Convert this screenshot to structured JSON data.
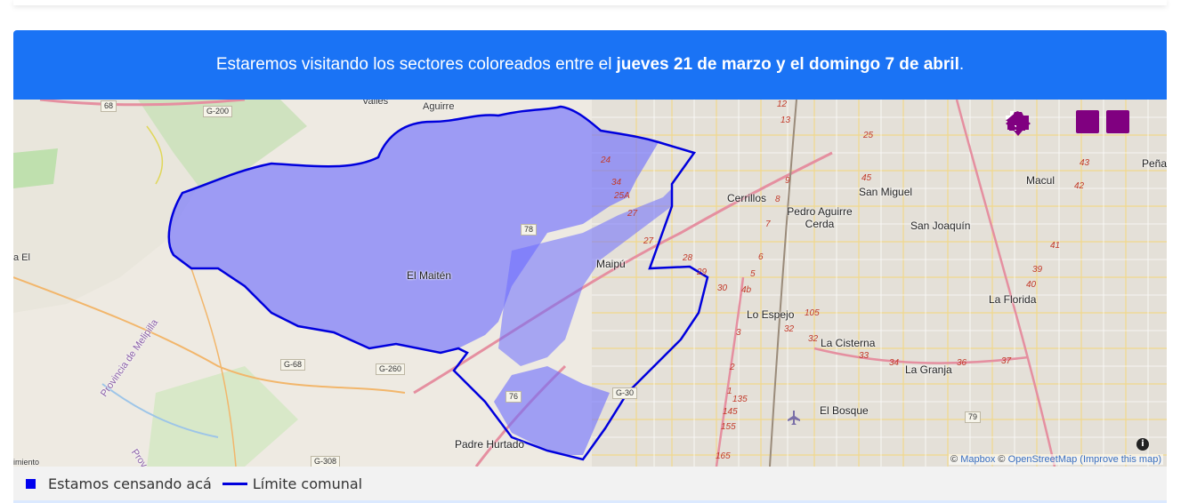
{
  "banner": {
    "text_before": "Estaremos visitando los sectores coloreados entre el ",
    "text_bold": "jueves 21 de marzo y el domingo 7 de abril",
    "text_after": "."
  },
  "map": {
    "places": {
      "aguirre": "Aguirre",
      "valles": "Valles",
      "el_maiten": "El Maitén",
      "maipu": "Maipú",
      "cerrillos": "Cerrillos",
      "pedro_aguirre_cerda": "Pedro Aguirre Cerda",
      "san_miguel": "San Miguel",
      "san_joaquin": "San Joaquín",
      "macul": "Macul",
      "penal": "Peñal",
      "la_florida": "La Florida",
      "lo_espejo": "Lo Espejo",
      "la_cisterna": "La Cisterna",
      "la_granja": "La Granja",
      "el_bosque": "El Bosque",
      "padre_hurtado": "Padre Hurtado",
      "la_el": "a El",
      "provincia_melipilla": "Provincia de Melipilla",
      "prov": "Prov",
      "imiento": "imiento"
    },
    "route_shields": [
      "68",
      "G-200",
      "G-68",
      "G-260",
      "G-308",
      "78",
      "76",
      "G-30",
      "79"
    ],
    "route_numbers": [
      "12",
      "13",
      "25",
      "45",
      "43",
      "42",
      "24",
      "34",
      "25A",
      "27",
      "27",
      "28",
      "29",
      "9",
      "8",
      "7",
      "6",
      "5",
      "4b",
      "30",
      "105",
      "32",
      "32",
      "33",
      "34",
      "36",
      "37",
      "39",
      "40",
      "41",
      "3",
      "2",
      "1",
      "135",
      "145",
      "155",
      "165"
    ],
    "colors": {
      "census_fill": "#6b6bff",
      "boundary": "#0000dd",
      "toolbar": "#800080",
      "banner": "#1a73f5"
    },
    "toolbar_icons": [
      "camera-icon",
      "pan-icon",
      "zoom-in-icon",
      "zoom-out-icon",
      "home-icon"
    ],
    "attribution": {
      "copy1": "©",
      "mapbox": "Mapbox",
      "copy2": "©",
      "osm": "OpenStreetMap",
      "improve": "Improve this map"
    }
  },
  "legend": {
    "census_label": "Estamos censando acá",
    "boundary_label": "Límite comunal"
  }
}
